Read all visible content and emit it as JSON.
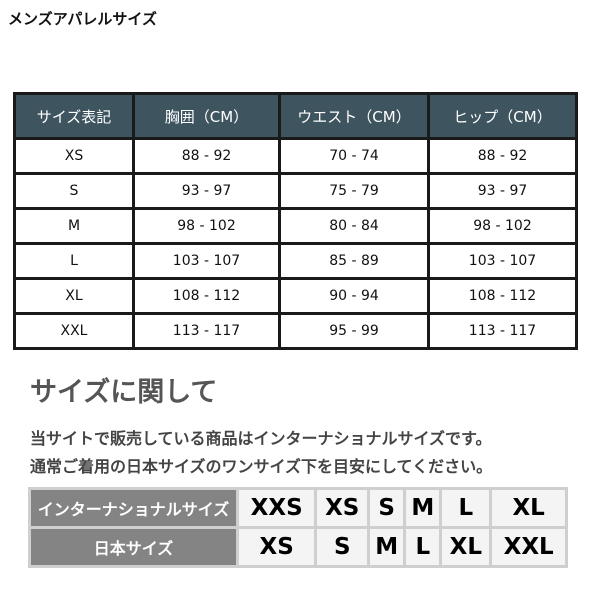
{
  "title": "メンズアパレルサイズ",
  "size_table": {
    "headers": [
      "サイズ表記",
      "胸囲（CM）",
      "ウエスト（CM）",
      "ヒップ（CM）"
    ],
    "rows": [
      [
        "XS",
        "88 - 92",
        "70 - 74",
        "88 - 92"
      ],
      [
        "S",
        "93 - 97",
        "75 - 79",
        "93 - 97"
      ],
      [
        "M",
        "98 - 102",
        "80 - 84",
        "98 - 102"
      ],
      [
        "L",
        "103 - 107",
        "85 - 89",
        "103 - 107"
      ],
      [
        "XL",
        "108 - 112",
        "90 - 94",
        "108 - 112"
      ],
      [
        "XXL",
        "113 - 117",
        "95 - 99",
        "113 - 117"
      ]
    ]
  },
  "about": {
    "heading": "サイズに関して",
    "line1": "当サイトで販売している商品はインターナショナルサイズです。",
    "line2": "通常ご着用の日本サイズのワンサイズ下を目安にしてください。"
  },
  "conversion": {
    "international_label": "インターナショナルサイズ",
    "international": [
      "XXS",
      "XS",
      "S",
      "M",
      "L",
      "XL"
    ],
    "japan_label": "日本サイズ",
    "japan": [
      "XS",
      "S",
      "M",
      "L",
      "XL",
      "XXL"
    ]
  }
}
